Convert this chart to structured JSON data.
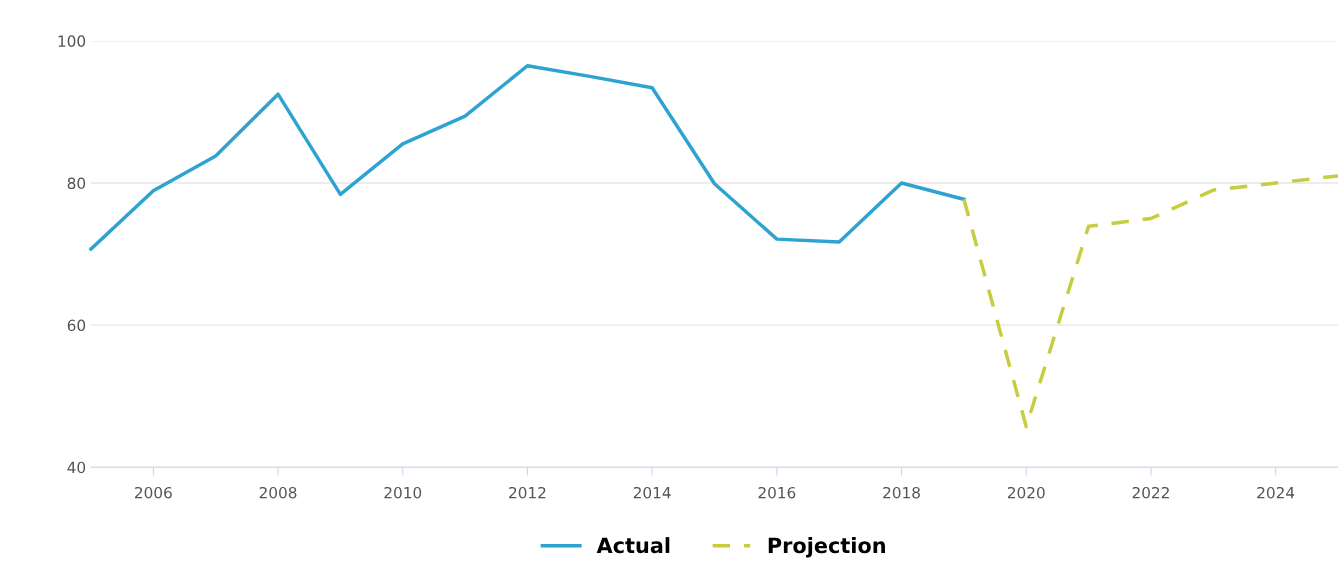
{
  "chart_data": {
    "type": "line",
    "xlim": [
      2005,
      2025
    ],
    "xticks": [
      2006,
      2008,
      2010,
      2012,
      2014,
      2016,
      2018,
      2020,
      2022,
      2024
    ],
    "ylim": [
      40,
      100
    ],
    "yticks": [
      40,
      60,
      80,
      100
    ],
    "grid": "y",
    "legend": "bottom",
    "series": [
      {
        "name": "Actual",
        "color": "#2ea3d1",
        "line_style": "solid",
        "x": [
          2005,
          2006,
          2007,
          2008,
          2009,
          2010,
          2011,
          2012,
          2013,
          2014,
          2015,
          2016,
          2017,
          2018,
          2019
        ],
        "values": [
          70.7,
          78.9,
          83.8,
          92.5,
          78.4,
          85.5,
          89.4,
          96.5,
          95,
          93.4,
          79.9,
          72.1,
          71.7,
          80,
          77.7
        ]
      },
      {
        "name": "Projection",
        "color": "#c8cc3f",
        "line_style": "dashed",
        "x": [
          2019,
          2020,
          2021,
          2022,
          2023,
          2024,
          2025
        ],
        "values": [
          77.7,
          45.7,
          73.9,
          75,
          79,
          80,
          81
        ]
      }
    ]
  }
}
